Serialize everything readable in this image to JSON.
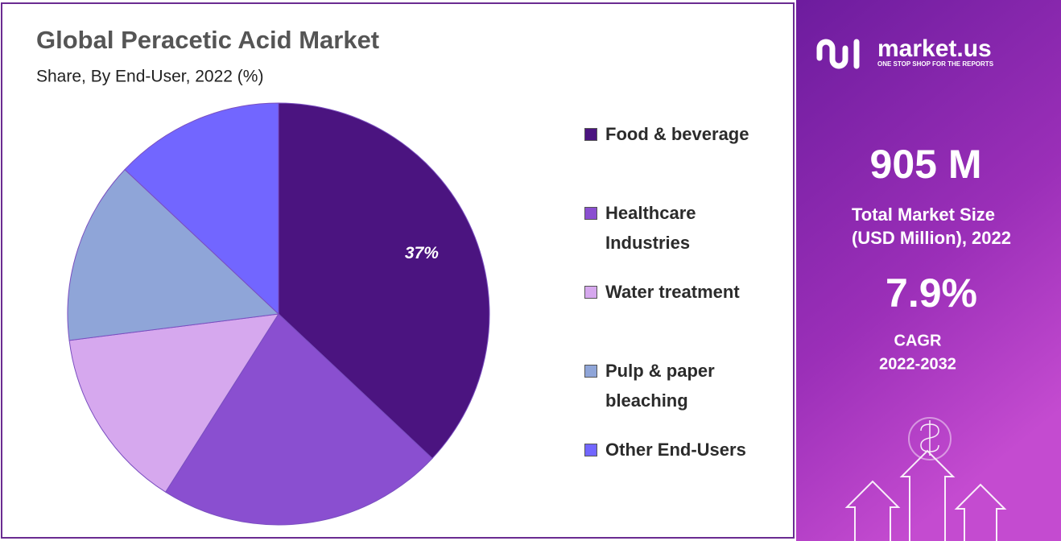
{
  "chart_data": {
    "type": "pie",
    "title": "Global Peracetic Acid Market",
    "subtitle": "Share, By End-User, 2022 (%)",
    "categories": [
      "Food & beverage",
      "Healthcare Industries",
      "Water treatment",
      "Pulp & paper bleaching",
      "Other End-Users"
    ],
    "values": [
      37,
      22,
      14,
      14,
      13
    ],
    "value_labels": [
      "37%",
      null,
      null,
      null,
      null
    ],
    "colors": [
      "#4b1480",
      "#8a4fd0",
      "#d6a8ee",
      "#8fa5d8",
      "#7266ff"
    ],
    "legend": "right"
  },
  "side_panel": {
    "brand": "market.us",
    "tagline": "ONE STOP SHOP FOR THE REPORTS",
    "market_size": "905 M",
    "market_size_label_1": "Total Market Size",
    "market_size_label_2": "(USD Million), 2022",
    "cagr": "7.9%",
    "cagr_label": "CAGR",
    "cagr_period": "2022-2032"
  }
}
